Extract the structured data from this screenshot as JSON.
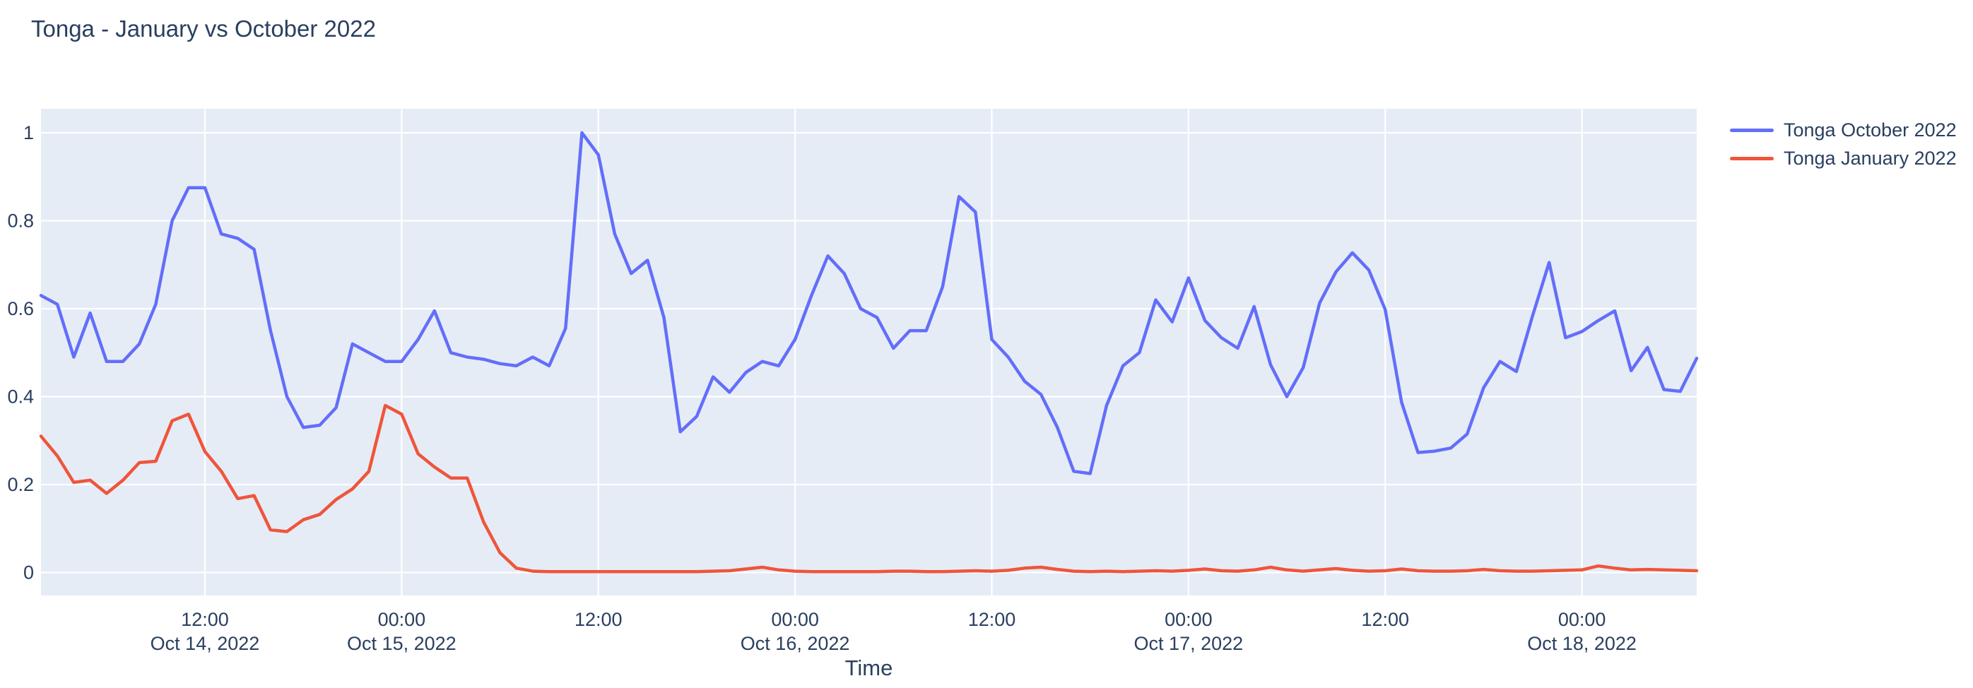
{
  "title": "Tonga - January vs October 2022",
  "legend": {
    "items": [
      {
        "label": "Tonga October 2022",
        "color": "#636EFA"
      },
      {
        "label": "Tonga January 2022",
        "color": "#EF553B"
      }
    ]
  },
  "axes": {
    "x": {
      "title": "Time"
    },
    "y": {
      "tick_labels": [
        "0",
        "0.2",
        "0.4",
        "0.6",
        "0.8",
        "1"
      ]
    }
  },
  "chart_data": {
    "type": "line",
    "title": "Tonga - January vs October 2022",
    "xlabel": "Time",
    "ylabel": "",
    "x_start": "2022-10-14 02:00",
    "x_step_hours": 1,
    "x_count": 102,
    "ylim": [
      -0.055,
      1.055
    ],
    "grid": true,
    "legend_position": "right-top-outside",
    "colors": {
      "plot_background": "#E5ECF6",
      "grid": "#FFFFFF",
      "text": "#2a3f5f",
      "october": "#636EFA",
      "january": "#EF553B"
    },
    "yticks": [
      {
        "value": 0,
        "label": "0"
      },
      {
        "value": 0.2,
        "label": "0.2"
      },
      {
        "value": 0.4,
        "label": "0.4"
      },
      {
        "value": 0.6,
        "label": "0.6"
      },
      {
        "value": 0.8,
        "label": "0.8"
      },
      {
        "value": 1,
        "label": "1"
      }
    ],
    "xticks": [
      {
        "index": 10,
        "time": "12:00",
        "date": "Oct 14, 2022"
      },
      {
        "index": 22,
        "time": "00:00",
        "date": "Oct 15, 2022"
      },
      {
        "index": 34,
        "time": "12:00",
        "date": ""
      },
      {
        "index": 46,
        "time": "00:00",
        "date": "Oct 16, 2022"
      },
      {
        "index": 58,
        "time": "12:00",
        "date": ""
      },
      {
        "index": 70,
        "time": "00:00",
        "date": "Oct 17, 2022"
      },
      {
        "index": 82,
        "time": "12:00",
        "date": ""
      },
      {
        "index": 94,
        "time": "00:00",
        "date": "Oct 18, 2022"
      }
    ],
    "series": [
      {
        "id": "october",
        "name": "Tonga October 2022",
        "color": "#636EFA",
        "values": [
          0.63,
          0.61,
          0.49,
          0.59,
          0.48,
          0.48,
          0.52,
          0.61,
          0.8,
          0.875,
          0.875,
          0.77,
          0.76,
          0.735,
          0.55,
          0.4,
          0.33,
          0.335,
          0.375,
          0.52,
          0.5,
          0.48,
          0.48,
          0.53,
          0.595,
          0.5,
          0.49,
          0.485,
          0.475,
          0.47,
          0.49,
          0.47,
          0.555,
          1.0,
          0.95,
          0.77,
          0.68,
          0.71,
          0.58,
          0.32,
          0.355,
          0.445,
          0.41,
          0.455,
          0.48,
          0.47,
          0.53,
          0.63,
          0.72,
          0.68,
          0.6,
          0.58,
          0.51,
          0.55,
          0.55,
          0.65,
          0.855,
          0.82,
          0.53,
          0.49,
          0.435,
          0.405,
          0.33,
          0.23,
          0.225,
          0.38,
          0.47,
          0.5,
          0.62,
          0.57,
          0.67,
          0.573,
          0.534,
          0.51,
          0.605,
          0.473,
          0.4,
          0.466,
          0.613,
          0.684,
          0.727,
          0.688,
          0.598,
          0.387,
          0.273,
          0.276,
          0.283,
          0.315,
          0.42,
          0.48,
          0.457,
          0.585,
          0.705,
          0.534,
          0.548,
          0.573,
          0.595,
          0.459,
          0.512,
          0.416,
          0.412,
          0.487
        ]
      },
      {
        "id": "january",
        "name": "Tonga January 2022",
        "color": "#EF553B",
        "values": [
          0.31,
          0.265,
          0.205,
          0.21,
          0.18,
          0.21,
          0.25,
          0.253,
          0.345,
          0.36,
          0.275,
          0.23,
          0.168,
          0.175,
          0.097,
          0.093,
          0.12,
          0.132,
          0.166,
          0.19,
          0.23,
          0.38,
          0.36,
          0.27,
          0.24,
          0.215,
          0.215,
          0.115,
          0.045,
          0.01,
          0.003,
          0.002,
          0.002,
          0.002,
          0.002,
          0.002,
          0.002,
          0.002,
          0.002,
          0.002,
          0.002,
          0.003,
          0.004,
          0.008,
          0.012,
          0.006,
          0.003,
          0.002,
          0.002,
          0.002,
          0.002,
          0.002,
          0.003,
          0.003,
          0.002,
          0.002,
          0.003,
          0.004,
          0.003,
          0.005,
          0.01,
          0.012,
          0.007,
          0.003,
          0.002,
          0.003,
          0.002,
          0.003,
          0.004,
          0.003,
          0.005,
          0.008,
          0.004,
          0.003,
          0.006,
          0.012,
          0.006,
          0.003,
          0.006,
          0.009,
          0.005,
          0.003,
          0.004,
          0.008,
          0.004,
          0.003,
          0.003,
          0.004,
          0.007,
          0.004,
          0.003,
          0.003,
          0.004,
          0.005,
          0.006,
          0.015,
          0.01,
          0.006,
          0.007,
          0.006,
          0.005,
          0.004
        ]
      }
    ]
  }
}
